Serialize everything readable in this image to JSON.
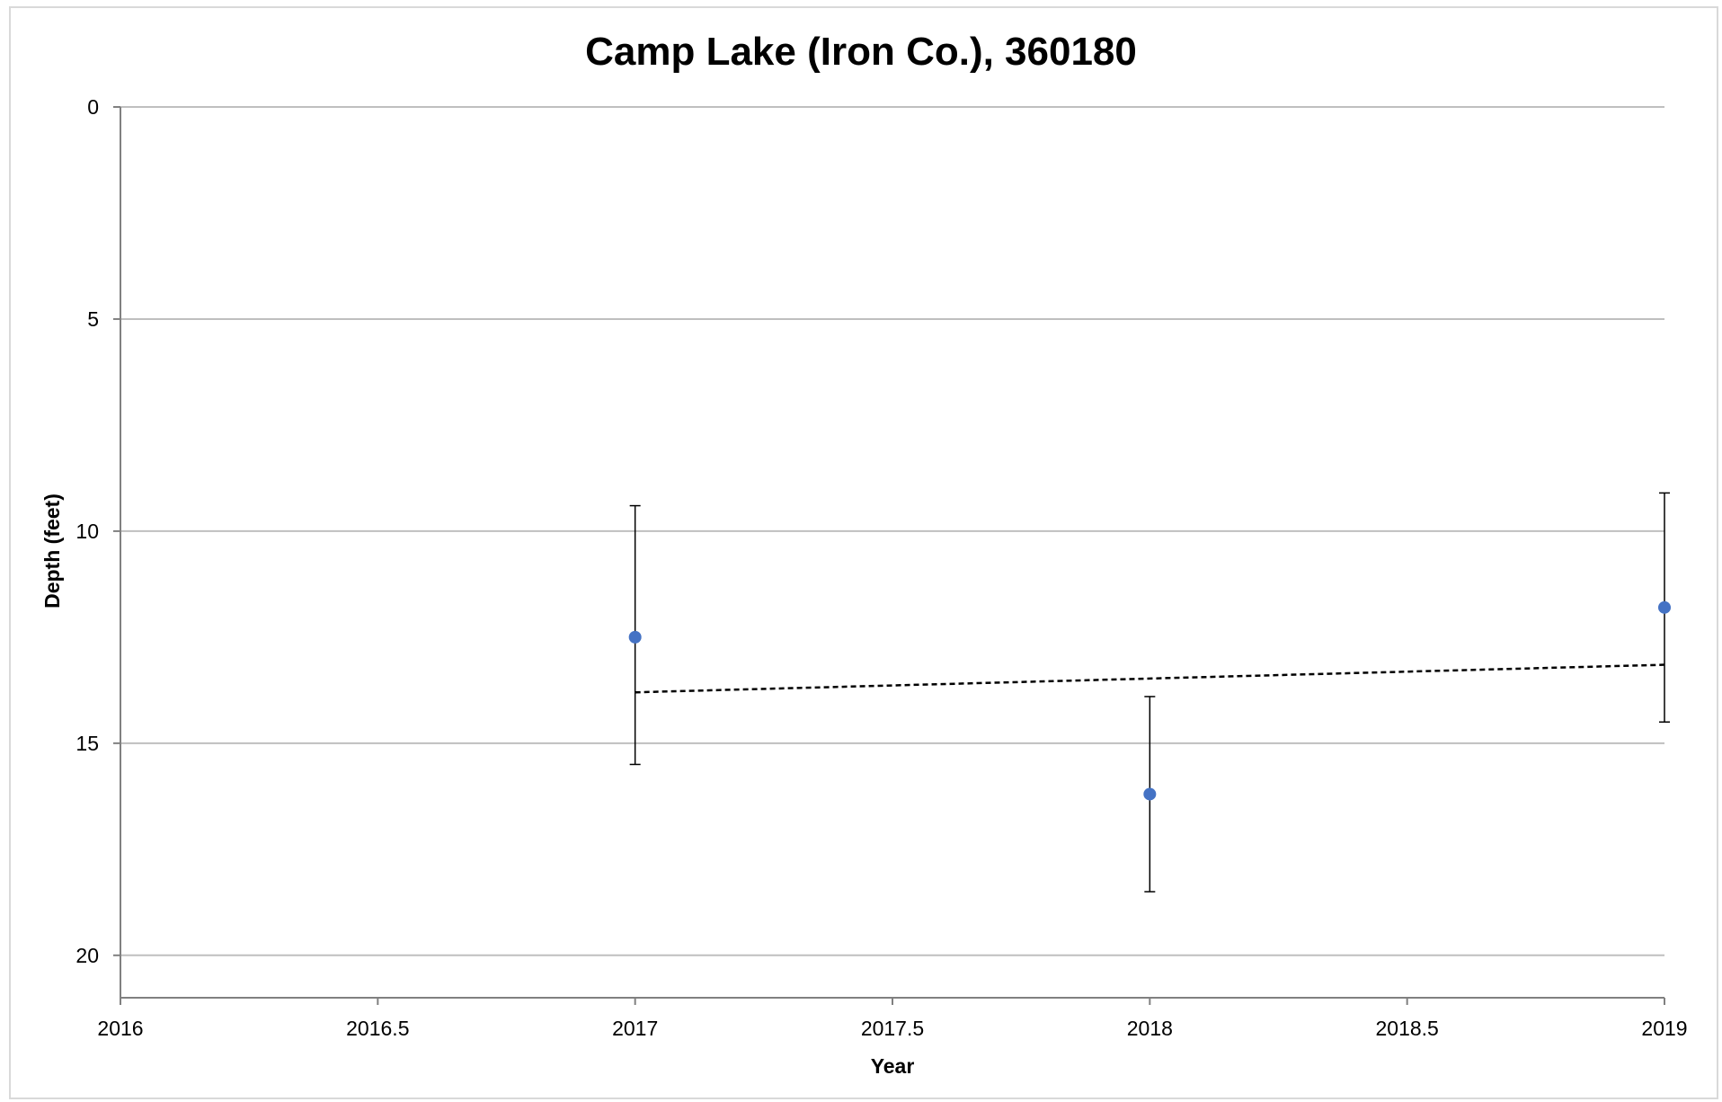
{
  "chart_data": {
    "type": "scatter",
    "title": "Camp Lake (Iron Co.), 360180",
    "xlabel": "Year",
    "ylabel": "Depth (feet)",
    "xlim": [
      2016,
      2019
    ],
    "ylim": [
      0,
      21
    ],
    "y_reversed": true,
    "x_ticks": [
      {
        "value": 2016,
        "label": "2016"
      },
      {
        "value": 2016.5,
        "label": "2016.5"
      },
      {
        "value": 2017,
        "label": "2017"
      },
      {
        "value": 2017.5,
        "label": "2017.5"
      },
      {
        "value": 2018,
        "label": "2018"
      },
      {
        "value": 2018.5,
        "label": "2018.5"
      },
      {
        "value": 2019,
        "label": "2019"
      }
    ],
    "y_ticks": [
      {
        "value": 0,
        "label": "0"
      },
      {
        "value": 5,
        "label": "5"
      },
      {
        "value": 10,
        "label": "10"
      },
      {
        "value": 15,
        "label": "15"
      },
      {
        "value": 20,
        "label": "20"
      }
    ],
    "grid": {
      "horizontal": true,
      "vertical": false
    },
    "legend": "none",
    "colors": {
      "marker": "#4472c4",
      "gridline": "#bfbfbf",
      "axis": "#808080",
      "error_bar": "#000000",
      "trendline": "#000000"
    },
    "series": [
      {
        "points": [
          {
            "x": 2017,
            "y": 12.5,
            "y_low": 9.4,
            "y_high": 15.5
          },
          {
            "x": 2018,
            "y": 16.2,
            "y_low": 13.9,
            "y_high": 18.5
          },
          {
            "x": 2019,
            "y": 11.8,
            "y_low": 9.1,
            "y_high": 14.5
          }
        ]
      }
    ],
    "trendline": {
      "style": "dashed",
      "from": {
        "x": 2017,
        "y": 13.8
      },
      "to": {
        "x": 2019,
        "y": 13.15
      }
    }
  }
}
